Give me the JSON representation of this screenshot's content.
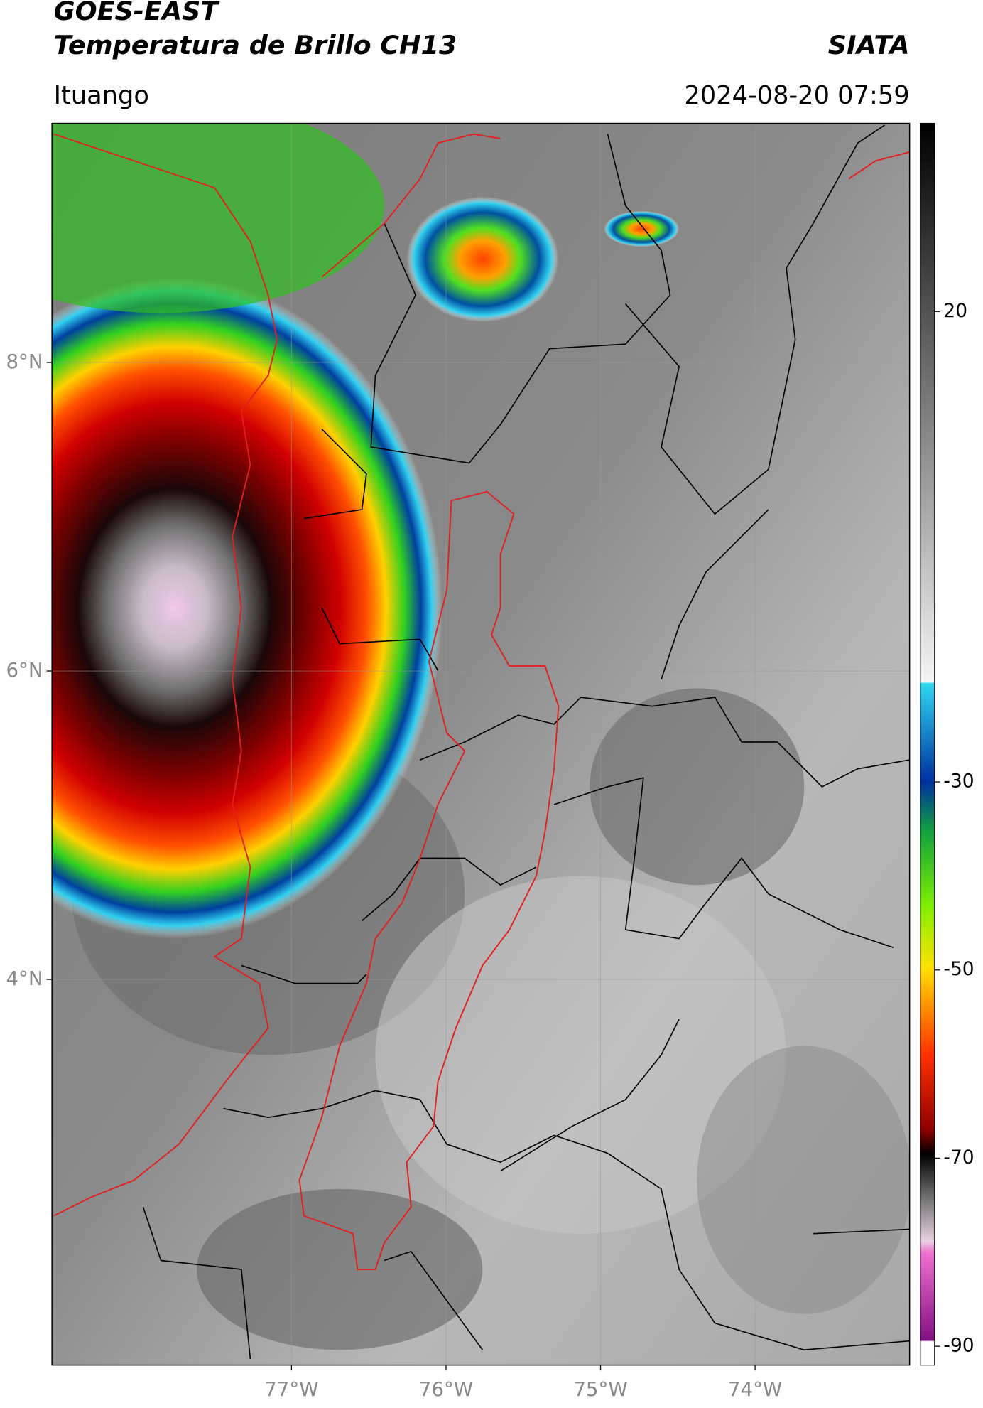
{
  "header": {
    "title": "GOES-EAST",
    "subtitle": "Temperatura de Brillo CH13",
    "source": "SIATA",
    "location": "Ituango",
    "datetime": "2024-08-20 07:59"
  },
  "map": {
    "xlim": [
      -78.55,
      -73.0
    ],
    "ylim": [
      1.5,
      9.55
    ],
    "xticks": [
      {
        "value": -77,
        "label": "77°W"
      },
      {
        "value": -76,
        "label": "76°W"
      },
      {
        "value": -75,
        "label": "75°W"
      },
      {
        "value": -74,
        "label": "74°W"
      }
    ],
    "yticks": [
      {
        "value": 8,
        "label": "8°N"
      },
      {
        "value": 6,
        "label": "6°N"
      },
      {
        "value": 4,
        "label": "4°N"
      }
    ],
    "grid": true
  },
  "colorbar": {
    "lim": [
      -92,
      40
    ],
    "ticks": [
      20,
      -30,
      -50,
      -70,
      -90
    ]
  }
}
